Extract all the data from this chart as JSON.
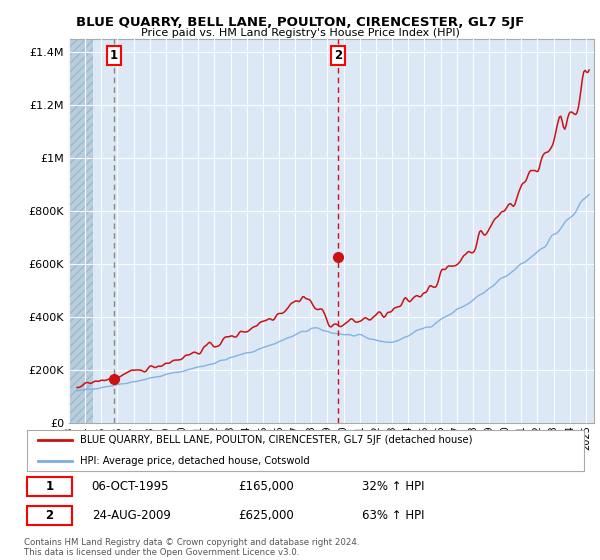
{
  "title": "BLUE QUARRY, BELL LANE, POULTON, CIRENCESTER, GL7 5JF",
  "subtitle": "Price paid vs. HM Land Registry's House Price Index (HPI)",
  "ylabel_ticks": [
    "£0",
    "£200K",
    "£400K",
    "£600K",
    "£800K",
    "£1M",
    "£1.2M",
    "£1.4M"
  ],
  "ytick_values": [
    0,
    200000,
    400000,
    600000,
    800000,
    1000000,
    1200000,
    1400000
  ],
  "ylim": [
    0,
    1450000
  ],
  "xlim_start": 1993.0,
  "xlim_end": 2025.5,
  "hpi_color": "#7aade0",
  "price_color": "#cc1111",
  "point1_x": 1995.77,
  "point1_y": 165000,
  "point2_x": 2009.65,
  "point2_y": 625000,
  "annotation1_label": "1",
  "annotation2_label": "2",
  "legend_line1": "BLUE QUARRY, BELL LANE, POULTON, CIRENCESTER, GL7 5JF (detached house)",
  "legend_line2": "HPI: Average price, detached house, Cotswold",
  "table_row1": [
    "1",
    "06-OCT-1995",
    "£165,000",
    "32% ↑ HPI"
  ],
  "table_row2": [
    "2",
    "24-AUG-2009",
    "£625,000",
    "63% ↑ HPI"
  ],
  "footnote": "Contains HM Land Registry data © Crown copyright and database right 2024.\nThis data is licensed under the Open Government Licence v3.0.",
  "bg_chart_color": "#dce8f5",
  "hatch_bg_color": "#c8d8e8",
  "grid_color": "#ffffff"
}
